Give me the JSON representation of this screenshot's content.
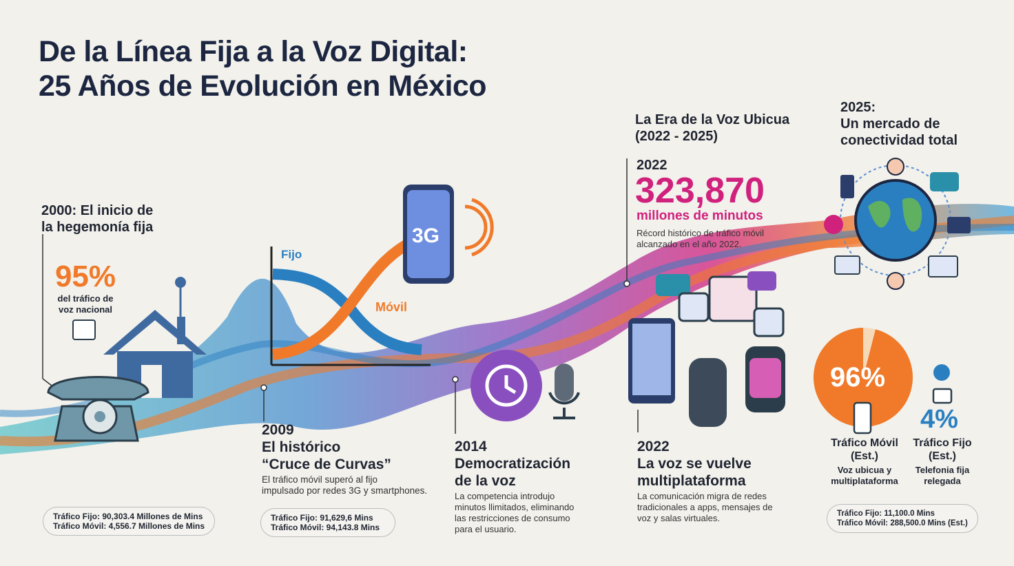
{
  "title": {
    "line1": "De la Línea Fija a la Voz Digital:",
    "line2": "25 Años de Evolución en México"
  },
  "colors": {
    "navy": "#1c2640",
    "orange": "#f07a2a",
    "magenta": "#d0217d",
    "blue": "#2a7fc1",
    "purple": "#8a4fbf",
    "teal": "#5ec4c8"
  },
  "y2000": {
    "heading_l1": "2000: El inicio de",
    "heading_l2": "la hegemonía fija",
    "stat": "95%",
    "stat_l1": "del tráfico de",
    "stat_l2": "voz nacional",
    "bubble_l1": "Tráfico Fijo: 90,303.4 Millones de Mins",
    "bubble_l2": "Tráfico Móvil: 4,556.7 Millones de Mins"
  },
  "y2009": {
    "chart_fijo": "Fijo",
    "chart_movil": "Móvil",
    "phone_label": "3G",
    "year": "2009",
    "heading_l1": "El histórico",
    "heading_l2": "“Cruce de Curvas”",
    "desc_l1": "El tráfico móvil superó al fijo",
    "desc_l2": "impulsado por redes 3G y smartphones.",
    "bubble_l1": "Tráfico Fijo: 91,629,6 Mins",
    "bubble_l2": "Tráfico Móvil: 94,143.8 Mins"
  },
  "y2014": {
    "year": "2014",
    "heading_l1": "Democratización",
    "heading_l2": "de la voz",
    "desc_l1": "La competencia introdujo",
    "desc_l2": "minutos llimitados, eliminando",
    "desc_l3": "las restricciones de consumo",
    "desc_l4": "para el usuario."
  },
  "era": {
    "heading_l1": "La Era de la Voz Ubicua",
    "heading_l2": "(2022 - 2025)",
    "year": "2022",
    "big_number": "323,870",
    "unit": "millones de minutos",
    "desc_l1": "Récord histórico de tráfico móvil",
    "desc_l2": "alcanzado en el año 2022."
  },
  "y2022": {
    "year": "2022",
    "heading_l1": "La voz se vuelve",
    "heading_l2": "multiplataforma",
    "desc_l1": "La comunicación migra de redes",
    "desc_l2": "tradicionales a apps, mensajes de",
    "desc_l3": "voz y salas virtuales."
  },
  "y2025": {
    "heading_l1": "2025:",
    "heading_l2": "Un mercado de",
    "heading_l3": "conectividad total",
    "mobile_pct": "96%",
    "mobile_share": 96,
    "fixed_pct": "4%",
    "mobile_label_l1": "Tráfico Móvil",
    "mobile_label_l2": "(Est.)",
    "mobile_sub_l1": "Voz ubicua y",
    "mobile_sub_l2": "multiplataforma",
    "fixed_label_l1": "Tráfico Fijo",
    "fixed_label_l2": "(Est.)",
    "fixed_sub_l1": "Telefonia fija",
    "fixed_sub_l2": "relegada",
    "bubble_l1": "Tráfico Fijo: 11,100.0 Mins",
    "bubble_l2": "Tráfico Móvil: 288,500.0 Mins (Est.)"
  }
}
